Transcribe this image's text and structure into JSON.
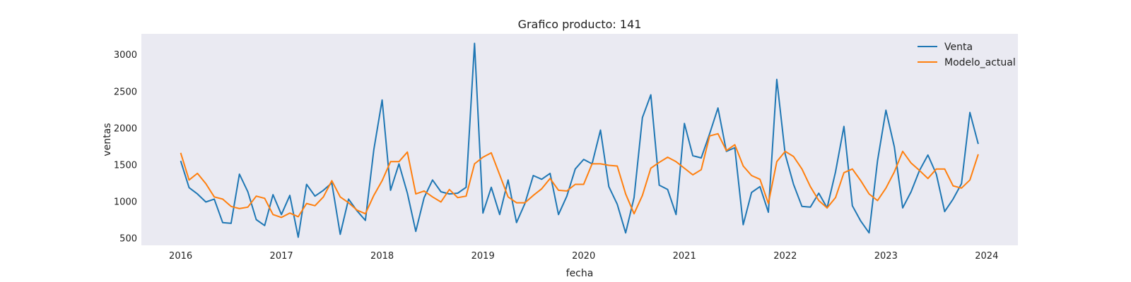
{
  "chart_data": {
    "type": "line",
    "title": "Grafico producto: 141",
    "xlabel": "fecha",
    "ylabel": "ventas",
    "xlim": [
      2015.61,
      2024.31
    ],
    "ylim": [
      400,
      3280
    ],
    "x_ticks": [
      2016,
      2017,
      2018,
      2019,
      2020,
      2021,
      2022,
      2023,
      2024
    ],
    "x_tick_labels": [
      "2016",
      "2017",
      "2018",
      "2019",
      "2020",
      "2021",
      "2022",
      "2023",
      "2024"
    ],
    "y_ticks": [
      500,
      1000,
      1500,
      2000,
      2500,
      3000
    ],
    "y_tick_labels": [
      "500",
      "1000",
      "1500",
      "2000",
      "2500",
      "3000"
    ],
    "grid": false,
    "legend": "top-right",
    "background": "#eaeaf2",
    "series": [
      {
        "name": "Venta",
        "color": "#1f77b4",
        "values": [
          1550,
          1185,
          1100,
          990,
          1030,
          710,
          700,
          1370,
          1130,
          750,
          670,
          1090,
          820,
          1080,
          510,
          1230,
          1070,
          1150,
          1250,
          550,
          1030,
          870,
          740,
          1700,
          2380,
          1150,
          1510,
          1110,
          590,
          1050,
          1290,
          1130,
          1100,
          1110,
          1190,
          3150,
          840,
          1190,
          820,
          1290,
          710,
          970,
          1350,
          1300,
          1380,
          820,
          1070,
          1440,
          1570,
          1510,
          1970,
          1200,
          960,
          570,
          1050,
          2140,
          2450,
          1220,
          1160,
          820,
          2060,
          1620,
          1590,
          1920,
          2270,
          1680,
          1730,
          680,
          1120,
          1200,
          850,
          2660,
          1640,
          1230,
          930,
          920,
          1110,
          910,
          1400,
          2020,
          940,
          730,
          570,
          1550,
          2240,
          1740,
          910,
          1130,
          1420,
          1630,
          1370,
          860,
          1030,
          1240,
          2210,
          1780
        ]
      },
      {
        "name": "Modelo_actual",
        "color": "#ff7f0e",
        "values": [
          1660,
          1290,
          1380,
          1240,
          1060,
          1030,
          930,
          900,
          920,
          1070,
          1040,
          820,
          780,
          840,
          790,
          970,
          940,
          1060,
          1280,
          1060,
          980,
          880,
          830,
          1080,
          1280,
          1540,
          1540,
          1670,
          1100,
          1140,
          1060,
          990,
          1160,
          1050,
          1070,
          1510,
          1600,
          1660,
          1360,
          1060,
          980,
          980,
          1080,
          1170,
          1310,
          1150,
          1140,
          1230,
          1230,
          1510,
          1510,
          1490,
          1480,
          1100,
          830,
          1080,
          1450,
          1530,
          1600,
          1540,
          1450,
          1360,
          1430,
          1890,
          1920,
          1690,
          1770,
          1480,
          1350,
          1300,
          970,
          1540,
          1680,
          1610,
          1440,
          1200,
          1010,
          910,
          1050,
          1390,
          1440,
          1280,
          1100,
          1010,
          1180,
          1400,
          1680,
          1520,
          1420,
          1310,
          1440,
          1440,
          1210,
          1180,
          1290,
          1640
        ]
      }
    ]
  }
}
